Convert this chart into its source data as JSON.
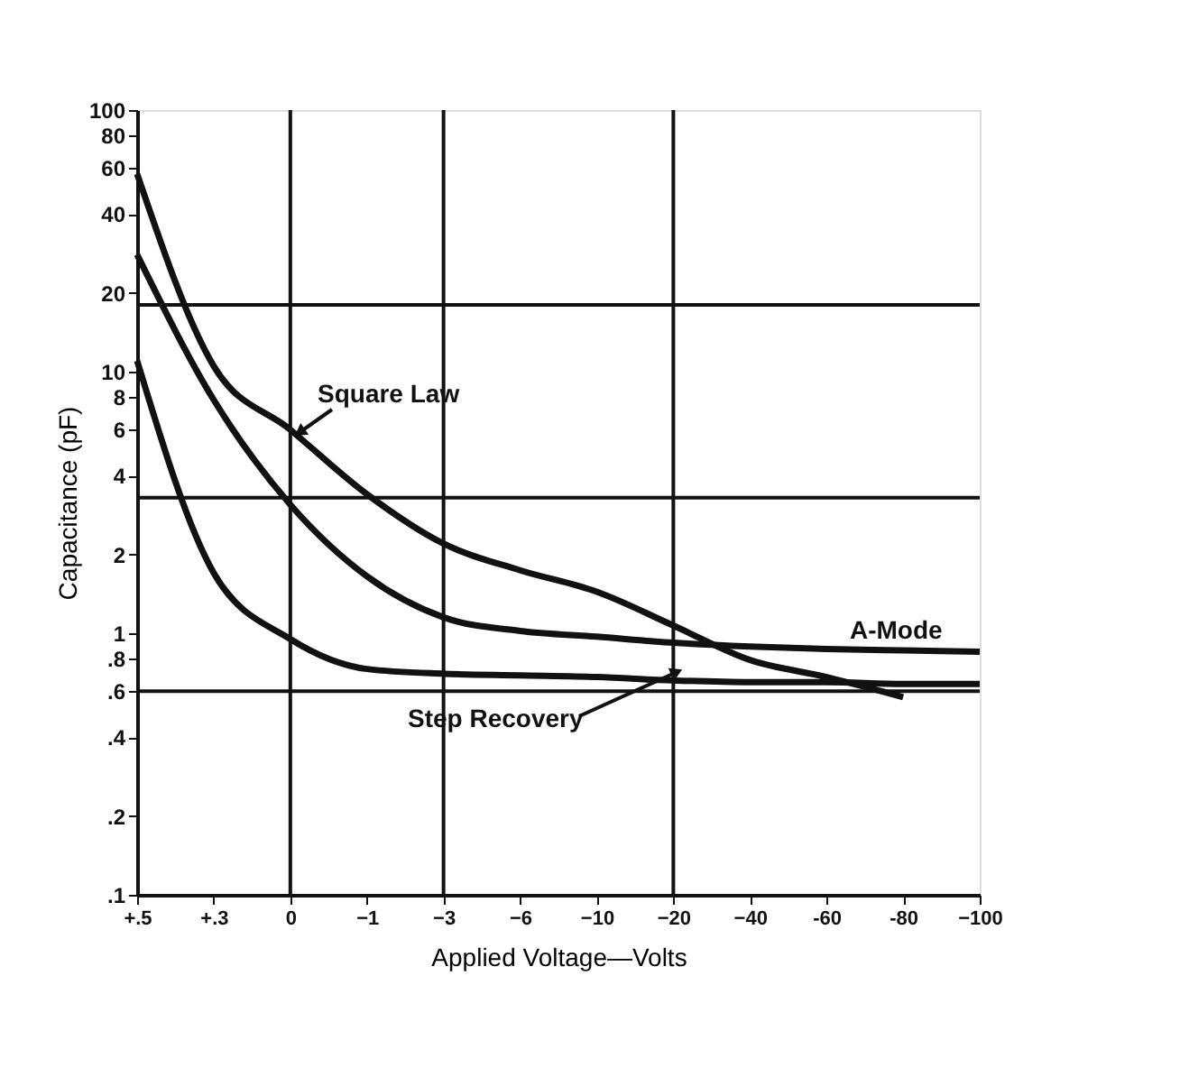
{
  "chart_data": {
    "type": "line",
    "xlabel": "Applied Voltage—Volts",
    "ylabel": "Capacitance (pF)",
    "log": "y",
    "legend": false,
    "marker": "none",
    "line_style": "solid",
    "grid": false,
    "categories": [
      "+.5",
      "+.3",
      "0",
      "−1",
      "−3",
      "−6",
      "−10",
      "−20",
      "−40",
      "-60",
      "-80",
      "−100"
    ],
    "ylim": [
      0.1,
      100
    ],
    "yticks": [
      {
        "value": 0.1,
        "label": ".1"
      },
      {
        "value": 0.2,
        "label": ".2"
      },
      {
        "value": 0.4,
        "label": ".4"
      },
      {
        "value": 0.6,
        "label": ".6"
      },
      {
        "value": 0.8,
        "label": ".8"
      },
      1,
      2,
      4,
      6,
      8,
      10,
      20,
      40,
      60,
      80,
      100
    ],
    "series": [
      {
        "name": "Square Law",
        "color": "#111111",
        "values": [
          57,
          10.5,
          6,
          3.4,
          2.2,
          1.74,
          1.44,
          1.07,
          0.79,
          0.68,
          0.57,
          null
        ]
      },
      {
        "name": "A-Mode",
        "color": "#111111",
        "values": [
          28,
          7.8,
          3.1,
          1.65,
          1.15,
          1.02,
          0.97,
          0.92,
          0.89,
          0.87,
          0.86,
          0.85
        ]
      },
      {
        "name": "Step Recovery",
        "color": "#111111",
        "values": [
          11,
          1.7,
          0.95,
          0.73,
          0.7,
          0.69,
          0.68,
          0.66,
          0.65,
          0.65,
          0.64,
          0.64
        ]
      }
    ],
    "ref_lines": [
      {
        "axis": "y",
        "value": 18,
        "color": "#111111"
      },
      {
        "axis": "y",
        "value": 3.3,
        "color": "#111111"
      },
      {
        "axis": "y",
        "value": 0.6,
        "color": "#111111"
      },
      {
        "axis": "x",
        "value": "0",
        "color": "#111111"
      },
      {
        "axis": "x",
        "value": "−3",
        "color": "#111111"
      },
      {
        "axis": "x",
        "value": "−20",
        "color": "#111111"
      }
    ]
  }
}
